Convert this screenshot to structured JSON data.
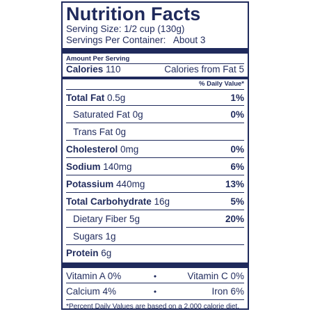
{
  "label": {
    "title": "Nutrition Facts",
    "serving_size": "Serving Size: 1/2 cup (130g)",
    "servings_per_container": "Servings Per Container:   About 3",
    "amount_per_serving": "Amount Per Serving",
    "calories_label": "Calories",
    "calories_value": "110",
    "calories_from_fat": "Calories from Fat 5",
    "daily_value_header": "% Daily Value*",
    "rows": [
      {
        "name": "Total Fat",
        "amount": "0.5g",
        "dv": "1%"
      },
      {
        "name": "Saturated Fat",
        "amount": "0g",
        "dv": "0%"
      },
      {
        "name": "Trans Fat",
        "amount": "0g",
        "dv": ""
      },
      {
        "name": "Cholesterol",
        "amount": "0mg",
        "dv": "0%"
      },
      {
        "name": "Sodium",
        "amount": "140mg",
        "dv": "6%"
      },
      {
        "name": "Potassium",
        "amount": "440mg",
        "dv": "13%"
      },
      {
        "name": "Total Carbohydrate",
        "amount": "16g",
        "dv": "5%"
      },
      {
        "name": "Dietary Fiber",
        "amount": "5g",
        "dv": "20%"
      },
      {
        "name": "Sugars",
        "amount": "1g",
        "dv": ""
      },
      {
        "name": "Protein",
        "amount": "6g",
        "dv": ""
      }
    ],
    "vitamins": {
      "vitamin_a": "Vitamin A 0%",
      "vitamin_c": "Vitamin C 0%",
      "calcium": "Calcium 4%",
      "iron": "Iron 6%",
      "separator": "•"
    },
    "footnote": "*Percent Daily Values are based on a 2,000 calorie diet."
  }
}
